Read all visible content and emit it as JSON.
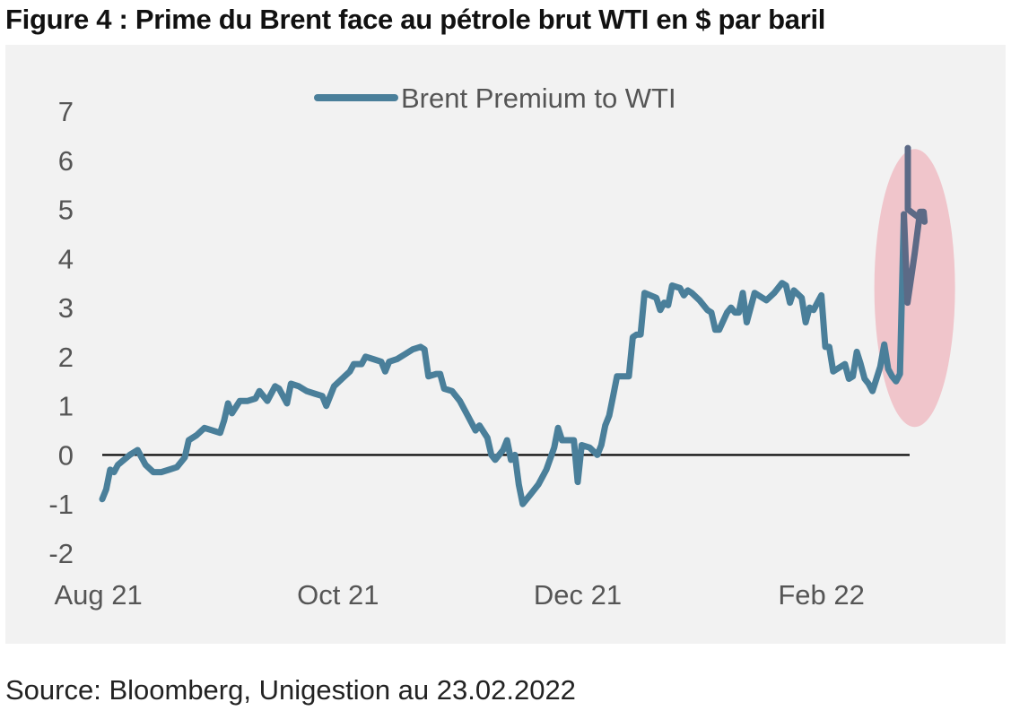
{
  "figure": {
    "title": "Figure 4 : Prime du Brent face au pétrole brut WTI en $ par baril",
    "source": "Source: Bloomberg, Unigestion au 23.02.2022"
  },
  "colors": {
    "series": "#4a7f9a",
    "highlight_line": "#5c6a86",
    "highlight_fill": "#efc0c7",
    "background": "#f2f2f2",
    "zero_line": "#000000",
    "text": "#555555"
  },
  "chart_data": {
    "type": "line",
    "title": "Figure 4 : Prime du Brent face au pétrole brut WTI en $ par baril",
    "xlabel": "",
    "ylabel": "",
    "ylim": [
      -2,
      7
    ],
    "yticks": [
      -2,
      -1,
      0,
      1,
      2,
      3,
      4,
      5,
      6,
      7
    ],
    "xlim": [
      "2021-08-02",
      "2022-02-23"
    ],
    "xticks": [
      {
        "label": "Aug 21",
        "date": "2021-08-01"
      },
      {
        "label": "Oct 21",
        "date": "2021-10-01"
      },
      {
        "label": "Dec 21",
        "date": "2021-12-01"
      },
      {
        "label": "Feb 22",
        "date": "2022-02-01"
      }
    ],
    "grid": false,
    "legend": "top-center",
    "zero_line": true,
    "annotation": "highlighted ellipse over the final surge (mid-Feb 2022 to 23 Feb 2022)",
    "series": [
      {
        "name": "Brent Premium to WTI",
        "points": [
          [
            "2021-08-02",
            -0.9
          ],
          [
            "2021-08-03",
            -0.7
          ],
          [
            "2021-08-04",
            -0.3
          ],
          [
            "2021-08-05",
            -0.35
          ],
          [
            "2021-08-06",
            -0.2
          ],
          [
            "2021-08-09",
            0.0
          ],
          [
            "2021-08-11",
            0.1
          ],
          [
            "2021-08-13",
            -0.2
          ],
          [
            "2021-08-15",
            -0.35
          ],
          [
            "2021-08-17",
            -0.35
          ],
          [
            "2021-08-19",
            -0.3
          ],
          [
            "2021-08-21",
            -0.25
          ],
          [
            "2021-08-23",
            -0.05
          ],
          [
            "2021-08-24",
            0.3
          ],
          [
            "2021-08-26",
            0.4
          ],
          [
            "2021-08-28",
            0.55
          ],
          [
            "2021-08-30",
            0.5
          ],
          [
            "2021-09-01",
            0.45
          ],
          [
            "2021-09-02",
            0.7
          ],
          [
            "2021-09-03",
            1.05
          ],
          [
            "2021-09-04",
            0.85
          ],
          [
            "2021-09-06",
            1.1
          ],
          [
            "2021-09-08",
            1.1
          ],
          [
            "2021-09-10",
            1.15
          ],
          [
            "2021-09-11",
            1.3
          ],
          [
            "2021-09-13",
            1.1
          ],
          [
            "2021-09-15",
            1.4
          ],
          [
            "2021-09-16",
            1.35
          ],
          [
            "2021-09-18",
            1.05
          ],
          [
            "2021-09-19",
            1.45
          ],
          [
            "2021-09-21",
            1.4
          ],
          [
            "2021-09-23",
            1.3
          ],
          [
            "2021-09-25",
            1.25
          ],
          [
            "2021-09-27",
            1.2
          ],
          [
            "2021-09-28",
            1.0
          ],
          [
            "2021-09-30",
            1.4
          ],
          [
            "2021-10-02",
            1.55
          ],
          [
            "2021-10-04",
            1.7
          ],
          [
            "2021-10-05",
            1.85
          ],
          [
            "2021-10-07",
            1.85
          ],
          [
            "2021-10-08",
            2.0
          ],
          [
            "2021-10-10",
            1.95
          ],
          [
            "2021-10-12",
            1.9
          ],
          [
            "2021-10-13",
            1.7
          ],
          [
            "2021-10-14",
            1.9
          ],
          [
            "2021-10-16",
            1.95
          ],
          [
            "2021-10-18",
            2.05
          ],
          [
            "2021-10-20",
            2.15
          ],
          [
            "2021-10-22",
            2.2
          ],
          [
            "2021-10-23",
            2.15
          ],
          [
            "2021-10-24",
            1.6
          ],
          [
            "2021-10-26",
            1.65
          ],
          [
            "2021-10-27",
            1.65
          ],
          [
            "2021-10-28",
            1.35
          ],
          [
            "2021-10-30",
            1.3
          ],
          [
            "2021-11-01",
            1.1
          ],
          [
            "2021-11-03",
            0.8
          ],
          [
            "2021-11-05",
            0.5
          ],
          [
            "2021-11-06",
            0.6
          ],
          [
            "2021-11-08",
            0.35
          ],
          [
            "2021-11-09",
            0.0
          ],
          [
            "2021-11-10",
            -0.1
          ],
          [
            "2021-11-12",
            0.1
          ],
          [
            "2021-11-13",
            0.3
          ],
          [
            "2021-11-14",
            -0.1
          ],
          [
            "2021-11-15",
            0.0
          ],
          [
            "2021-11-16",
            -0.6
          ],
          [
            "2021-11-17",
            -1.0
          ],
          [
            "2021-11-19",
            -0.8
          ],
          [
            "2021-11-21",
            -0.6
          ],
          [
            "2021-11-23",
            -0.3
          ],
          [
            "2021-11-25",
            0.15
          ],
          [
            "2021-11-26",
            0.55
          ],
          [
            "2021-11-27",
            0.3
          ],
          [
            "2021-11-29",
            0.3
          ],
          [
            "2021-11-30",
            0.3
          ],
          [
            "2021-12-01",
            -0.55
          ],
          [
            "2021-12-02",
            0.2
          ],
          [
            "2021-12-04",
            0.15
          ],
          [
            "2021-12-06",
            0.0
          ],
          [
            "2021-12-07",
            0.2
          ],
          [
            "2021-12-08",
            0.6
          ],
          [
            "2021-12-09",
            0.8
          ],
          [
            "2021-12-10",
            1.2
          ],
          [
            "2021-12-11",
            1.6
          ],
          [
            "2021-12-14",
            1.6
          ],
          [
            "2021-12-15",
            2.4
          ],
          [
            "2021-12-16",
            2.45
          ],
          [
            "2021-12-17",
            2.45
          ],
          [
            "2021-12-18",
            3.3
          ],
          [
            "2021-12-21",
            3.2
          ],
          [
            "2021-12-22",
            2.95
          ],
          [
            "2021-12-23",
            3.1
          ],
          [
            "2021-12-24",
            3.05
          ],
          [
            "2021-12-25",
            3.45
          ],
          [
            "2021-12-27",
            3.4
          ],
          [
            "2021-12-28",
            3.25
          ],
          [
            "2021-12-29",
            3.35
          ],
          [
            "2021-12-30",
            3.3
          ],
          [
            "2022-01-01",
            3.15
          ],
          [
            "2022-01-03",
            2.95
          ],
          [
            "2022-01-04",
            2.9
          ],
          [
            "2022-01-05",
            2.55
          ],
          [
            "2022-01-06",
            2.55
          ],
          [
            "2022-01-08",
            2.9
          ],
          [
            "2022-01-09",
            3.0
          ],
          [
            "2022-01-10",
            2.9
          ],
          [
            "2022-01-11",
            2.9
          ],
          [
            "2022-01-12",
            3.3
          ],
          [
            "2022-01-13",
            2.7
          ],
          [
            "2022-01-14",
            3.0
          ],
          [
            "2022-01-15",
            3.3
          ],
          [
            "2022-01-17",
            3.2
          ],
          [
            "2022-01-18",
            3.15
          ],
          [
            "2022-01-20",
            3.3
          ],
          [
            "2022-01-22",
            3.5
          ],
          [
            "2022-01-23",
            3.45
          ],
          [
            "2022-01-24",
            3.1
          ],
          [
            "2022-01-25",
            3.35
          ],
          [
            "2022-01-27",
            3.2
          ],
          [
            "2022-01-28",
            2.7
          ],
          [
            "2022-01-29",
            3.0
          ],
          [
            "2022-01-30",
            2.95
          ],
          [
            "2022-01-31",
            3.1
          ],
          [
            "2022-02-01",
            3.25
          ],
          [
            "2022-02-02",
            2.2
          ],
          [
            "2022-02-03",
            2.2
          ],
          [
            "2022-02-04",
            1.7
          ],
          [
            "2022-02-06",
            1.8
          ],
          [
            "2022-02-07",
            1.85
          ],
          [
            "2022-02-08",
            1.55
          ],
          [
            "2022-02-09",
            1.6
          ],
          [
            "2022-02-10",
            2.1
          ],
          [
            "2022-02-11",
            1.85
          ],
          [
            "2022-02-12",
            1.55
          ],
          [
            "2022-02-13",
            1.45
          ],
          [
            "2022-02-14",
            1.3
          ],
          [
            "2022-02-15",
            1.55
          ],
          [
            "2022-02-16",
            1.8
          ],
          [
            "2022-02-17",
            2.25
          ],
          [
            "2022-02-18",
            1.75
          ],
          [
            "2022-02-19",
            1.6
          ],
          [
            "2022-02-20",
            1.5
          ],
          [
            "2022-02-21",
            1.65
          ],
          [
            "2022-02-22",
            4.9
          ],
          [
            "2022-02-23",
            6.25
          ]
        ]
      }
    ]
  }
}
